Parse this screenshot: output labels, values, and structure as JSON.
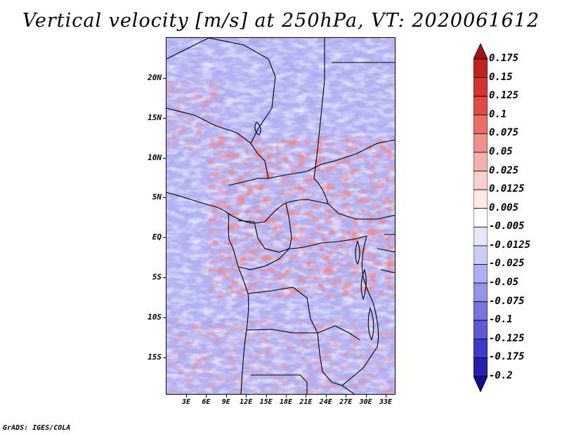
{
  "title": "Vertical velocity [m/s] at 250hPa, VT: 2020061612",
  "map": {
    "projection": "latlon",
    "latitude_labels": [
      "20N",
      "15N",
      "10N",
      "5N",
      "EQ",
      "5S",
      "10S",
      "15S"
    ],
    "longitude_labels": [
      "3E",
      "6E",
      "9E",
      "12E",
      "15E",
      "18E",
      "21E",
      "24E",
      "27E",
      "30E",
      "33E"
    ]
  },
  "colorbar": {
    "labels": [
      "0.175",
      "0.15",
      "0.125",
      "0.1",
      "0.075",
      "0.05",
      "0.025",
      "0.0125",
      "0.005",
      "-0.005",
      "-0.0125",
      "-0.025",
      "-0.05",
      "-0.075",
      "-0.1",
      "-0.125",
      "-0.175",
      "-0.2"
    ],
    "colors": [
      "#a81014",
      "#c0201f",
      "#d63430",
      "#e24a44",
      "#ea6e68",
      "#f0908a",
      "#f5b2ad",
      "#f9d0cc",
      "#fde9e7",
      "#ffffff",
      "#e6e6fb",
      "#cccbf5",
      "#b0aeef",
      "#9592ea",
      "#7875e1",
      "#5c58d6",
      "#3f3bc8",
      "#2320b0",
      "#120c90"
    ]
  },
  "credit": "GrADS: IGES/COLA"
}
